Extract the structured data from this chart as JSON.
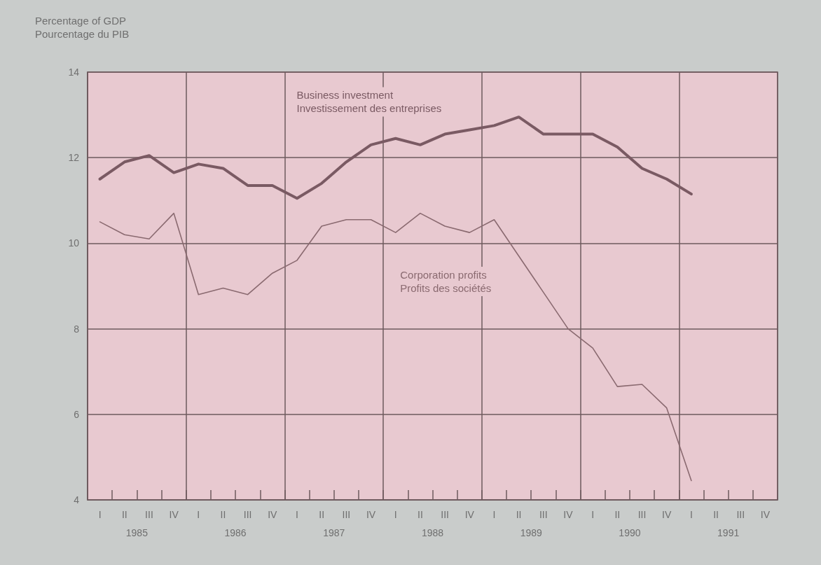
{
  "chart_data": {
    "type": "line",
    "ylabel": "Percentage of GDP\nPourcentage du PIB",
    "categories": [
      "I",
      "II",
      "III",
      "IV",
      "I",
      "II",
      "III",
      "IV",
      "I",
      "II",
      "III",
      "IV",
      "I",
      "II",
      "III",
      "IV",
      "I",
      "II",
      "III",
      "IV",
      "I",
      "II",
      "III",
      "IV",
      "I",
      "II",
      "III",
      "IV"
    ],
    "annotations": [
      "1985",
      "1986",
      "1987",
      "1988",
      "1989",
      "1990",
      "1991"
    ],
    "series": [
      {
        "name": "Business investment\nInvestissement des entreprises",
        "color": "#7a5a63",
        "values": [
          11.5,
          11.9,
          12.05,
          11.65,
          11.85,
          11.75,
          11.35,
          11.35,
          11.05,
          11.4,
          11.9,
          12.3,
          12.45,
          12.3,
          12.55,
          12.65,
          12.75,
          12.95,
          12.55,
          12.55,
          12.55,
          12.25,
          11.75,
          11.5,
          11.15,
          null,
          null,
          null
        ]
      },
      {
        "name": "Corporation profits\nProfits des sociétés",
        "color": "#8a6a70",
        "values": [
          10.5,
          10.2,
          10.1,
          10.7,
          8.8,
          8.95,
          8.8,
          9.3,
          9.6,
          10.4,
          10.55,
          10.55,
          10.25,
          10.7,
          10.4,
          10.25,
          10.55,
          9.7,
          8.85,
          8.0,
          7.55,
          6.65,
          6.7,
          6.15,
          4.45,
          null,
          null,
          null
        ]
      }
    ],
    "ylim": [
      4,
      14
    ],
    "yticks": [
      4,
      6,
      8,
      10,
      12,
      14
    ],
    "grid": true,
    "legend": false,
    "marker": "none",
    "line_style": "solid"
  }
}
